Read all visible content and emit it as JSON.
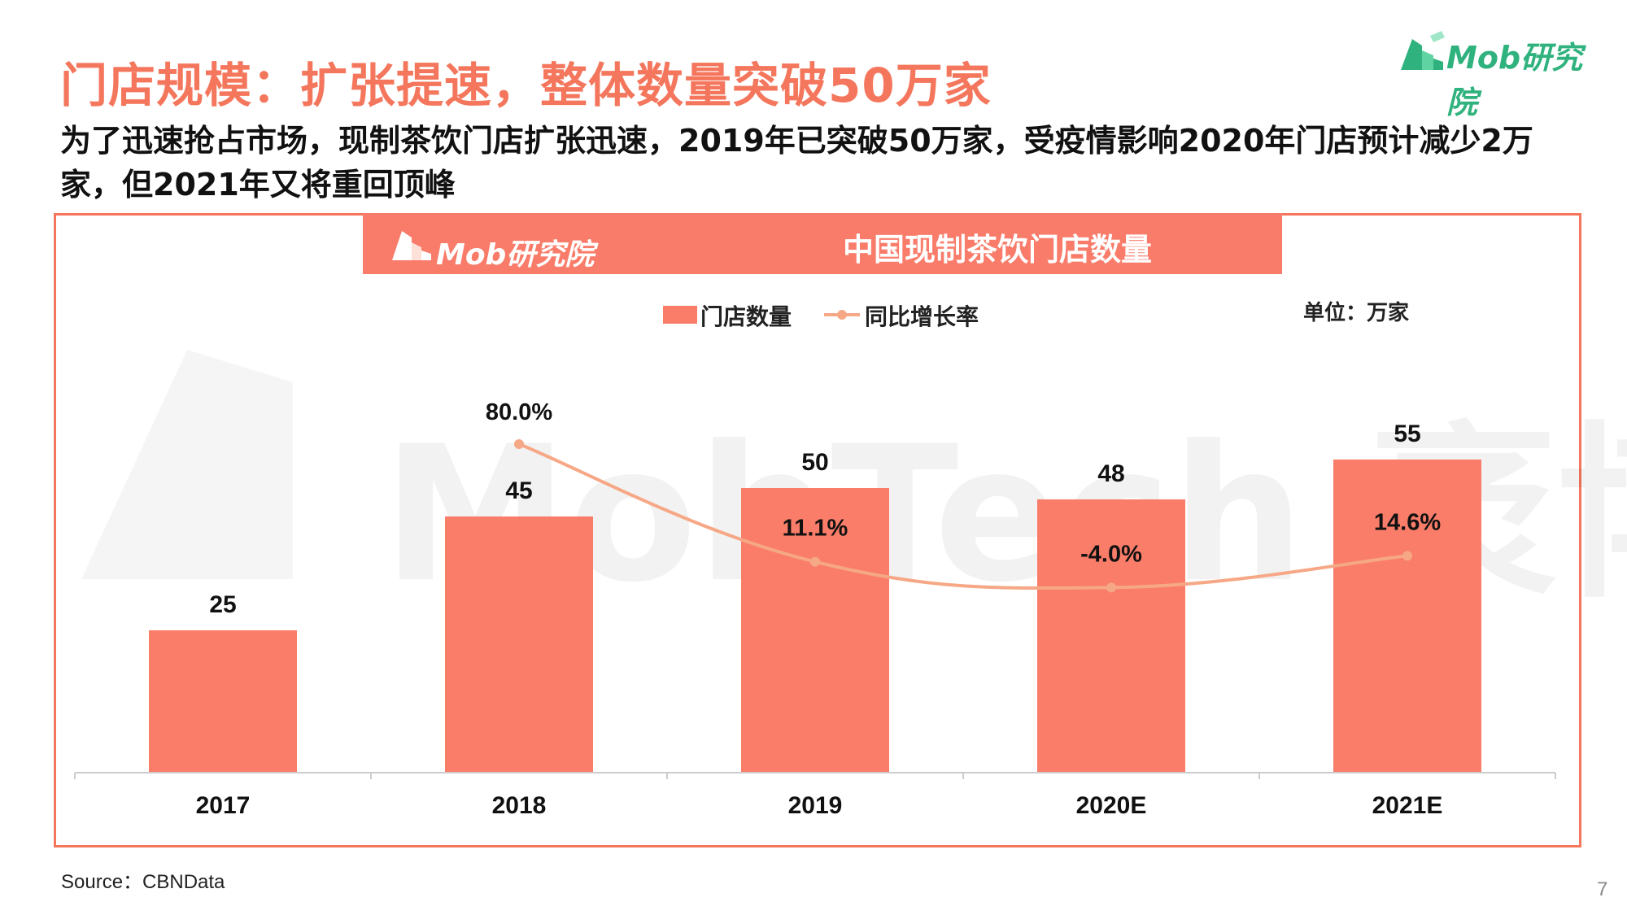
{
  "slide": {
    "title": "门店规模：扩张提速，整体数量突破50万家",
    "subtitle": "为了迅速抢占市场，现制茶饮门店扩张迅速，2019年已突破50万家，受疫情影响2020年门店预计减少2万家，但2021年又将重回顶峰",
    "brand": "Mob研究院",
    "source": "Source：CBNData",
    "page_number": "7"
  },
  "chart_header": {
    "brand": "Mob研究院",
    "title": "中国现制茶饮门店数量"
  },
  "watermark": "MobTech 袤博",
  "colors": {
    "accent": "#f4765c",
    "bar": "#fa7d69",
    "line": "#f6a886",
    "brand_green": "#2fb27d"
  },
  "chart_data": {
    "type": "bar",
    "title": "中国现制茶饮门店数量",
    "unit_label": "单位：万家",
    "categories": [
      "2017",
      "2018",
      "2019",
      "2020E",
      "2021E"
    ],
    "series": [
      {
        "name": "门店数量",
        "type": "bar",
        "values": [
          25,
          45,
          50,
          48,
          55
        ],
        "labels": [
          "25",
          "45",
          "50",
          "48",
          "55"
        ]
      },
      {
        "name": "同比增长率",
        "type": "line",
        "values": [
          null,
          80.0,
          11.1,
          -4.0,
          14.6
        ],
        "labels": [
          "",
          "80.0%",
          "11.1%",
          "-4.0%",
          "14.6%"
        ]
      }
    ],
    "legend_position": "top-center",
    "grid": false
  }
}
